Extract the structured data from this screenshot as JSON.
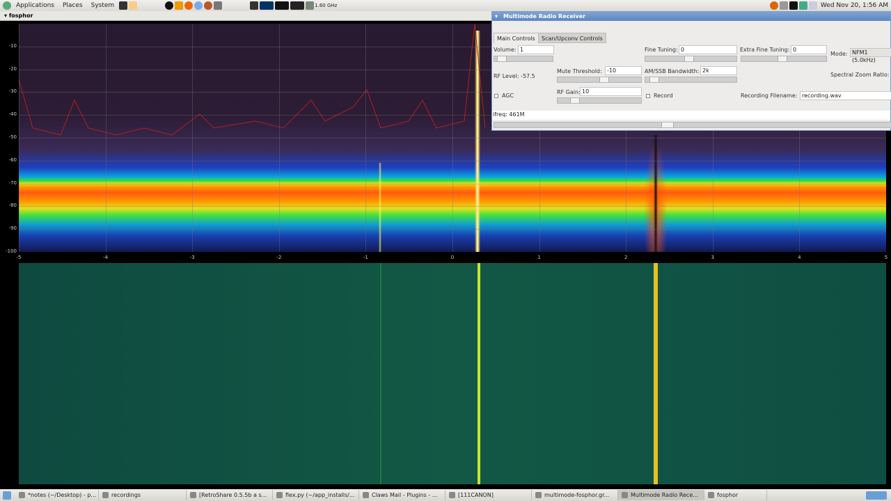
{
  "top_panel": {
    "menus": [
      "Applications",
      "Places",
      "System"
    ],
    "cpu_freq": "1.60 GHz",
    "clock": "Wed Nov 20, 1:56 AM"
  },
  "fosphor": {
    "title": "fosphor",
    "y_ticks": [
      "-10",
      "-20",
      "-30",
      "-40",
      "-50",
      "-60",
      "-70",
      "-80",
      "-90",
      "-100"
    ],
    "x_ticks": [
      "-5",
      "-4",
      "-3",
      "-2",
      "-1",
      "0",
      "1",
      "2",
      "3",
      "4",
      "5"
    ]
  },
  "radio": {
    "title": "Multimode Radio Receiver",
    "tabs": [
      "Main Controls",
      "Scan/Upconv Controls"
    ],
    "volume_label": "Volume:",
    "volume": "1",
    "fine_tuning_label": "Fine Tuning:",
    "fine_tuning": "0",
    "extra_fine_label": "Extra Fine Tuning:",
    "extra_fine": "0",
    "mode_label": "Mode:",
    "mode": "NFM1 (5.0kHz)",
    "rf_level": "RF Level: -57.5",
    "mute_label": "Mute Threshold:",
    "mute": "-10",
    "bw_label": "AM/SSB Bandwidth:",
    "bw": "2k",
    "zoom_label": "Spectral Zoom Ratio:",
    "agc_label": "AGC",
    "rf_gain_label": "RF Gain:",
    "rf_gain": "10",
    "record_label": "Record",
    "rec_file_label": "Recording Filename:",
    "rec_file": "recording.wav",
    "ifreq_label": "ifreq:",
    "ifreq": "461M"
  },
  "taskbar": [
    "*notes (~/Desktop) - p...",
    "recordings",
    "[RetroShare 0.5.5b a s...",
    "flex.py (~/app_installs/...",
    "Claws Mail - Plugins - ...",
    "[111CANON]",
    "multimode-fosphor.gr...",
    "Multimode Radio Rece...",
    "fosphor"
  ]
}
